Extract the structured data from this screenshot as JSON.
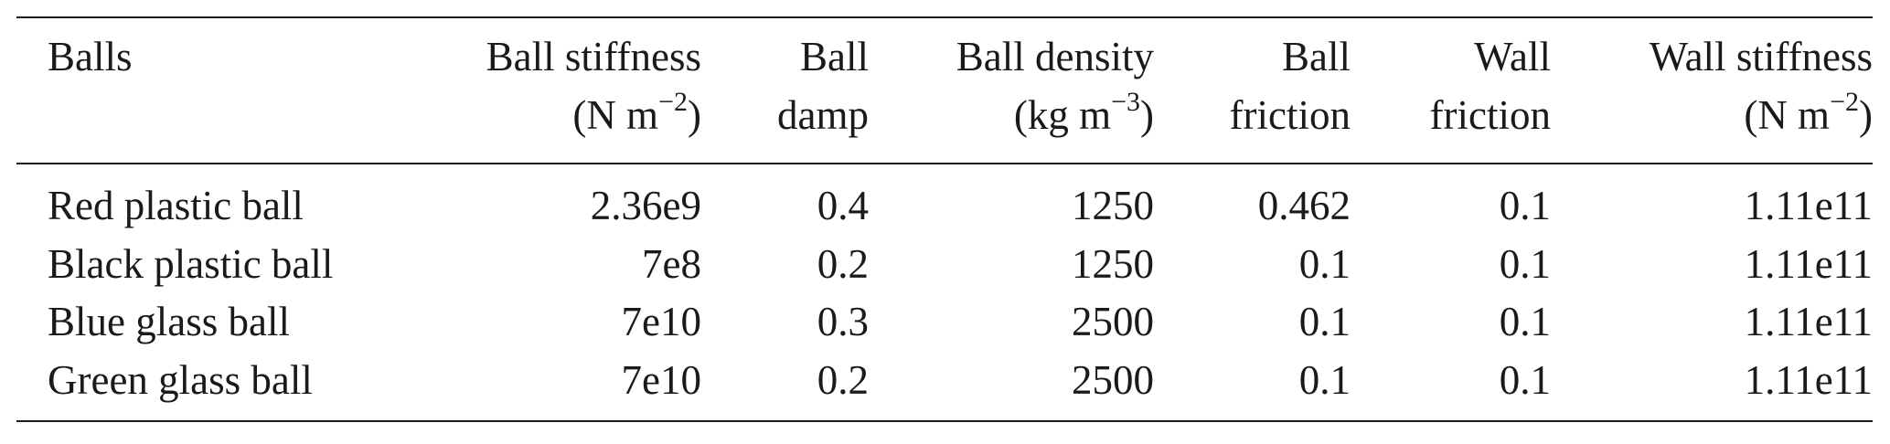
{
  "table": {
    "headers": [
      {
        "line1": "Balls",
        "line2": ""
      },
      {
        "line1": "Ball stiffness",
        "line2": "(N m−2)"
      },
      {
        "line1": "Ball",
        "line2": "damp"
      },
      {
        "line1": "Ball density",
        "line2": "(kg m−3)"
      },
      {
        "line1": "Ball",
        "line2": "friction"
      },
      {
        "line1": "Wall",
        "line2": "friction"
      },
      {
        "line1": "Wall stiffness",
        "line2": "(N m−2)"
      }
    ],
    "rows": [
      [
        "Red plastic ball",
        "2.36e9",
        "0.4",
        "1250",
        "0.462",
        "0.1",
        "1.11e11"
      ],
      [
        "Black plastic ball",
        "7e8",
        "0.2",
        "1250",
        "0.1",
        "0.1",
        "1.11e11"
      ],
      [
        "Blue glass ball",
        "7e10",
        "0.3",
        "2500",
        "0.1",
        "0.1",
        "1.11e11"
      ],
      [
        "Green glass ball",
        "7e10",
        "0.2",
        "2500",
        "0.1",
        "0.1",
        "1.11e11"
      ]
    ]
  }
}
